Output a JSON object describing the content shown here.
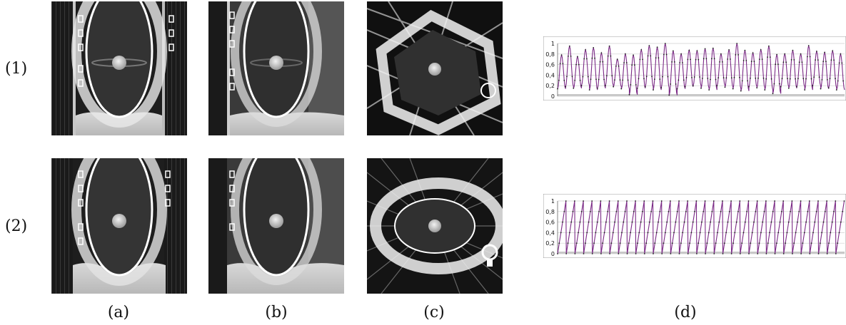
{
  "rows": [
    {
      "label": "(1)"
    },
    {
      "label": "(2)"
    }
  ],
  "columns": [
    {
      "label": "(a)"
    },
    {
      "label": "(b)"
    },
    {
      "label": "(c)"
    },
    {
      "label": "(d)"
    }
  ],
  "chart_data": [
    {
      "type": "line",
      "panel": "(1)(d)",
      "title": "",
      "xlabel": "",
      "ylabel": "",
      "ylim": [
        0,
        1
      ],
      "yticks": [
        "0",
        "0,2",
        "0,4",
        "0,6",
        "0,8",
        "1"
      ],
      "grid": true,
      "series_color": "#7b2a86",
      "series": [
        {
          "peaks": [
            0.78,
            0.95,
            0.75,
            0.88,
            0.92,
            0.82,
            0.95,
            0.7,
            0.8,
            0.78,
            0.88,
            0.96,
            0.93,
            1.0,
            0.86,
            0.8,
            0.87,
            0.86,
            0.9,
            0.91,
            0.8,
            0.88,
            1.0,
            0.87,
            0.82,
            0.88,
            0.95,
            0.79,
            0.8,
            0.87,
            0.8,
            0.96,
            0.85,
            0.83,
            0.86,
            0.8
          ],
          "troughs": [
            0.14,
            0.18,
            0.15,
            0.2,
            0.12,
            0.15,
            0.2,
            0.18,
            0.14,
            0.03,
            0.15,
            0.18,
            0.12,
            0.16,
            0.02,
            0.14,
            0.18,
            0.2,
            0.15,
            0.12,
            0.2,
            0.17,
            0.14,
            0.1,
            0.18,
            0.16,
            0.12,
            0.05,
            0.18,
            0.15,
            0.18,
            0.12,
            0.2,
            0.14,
            0.16,
            0.12
          ]
        }
      ]
    },
    {
      "type": "line",
      "panel": "(2)(d)",
      "title": "",
      "xlabel": "",
      "ylabel": "",
      "ylim": [
        0,
        1
      ],
      "yticks": [
        "0",
        "0,2",
        "0,4",
        "0,6",
        "0,8",
        "1"
      ],
      "grid": true,
      "series_color": "#7b2a86",
      "series": [
        {
          "shape": "sawtooth",
          "cycles": 33,
          "min": 0.0,
          "max": 1.0
        }
      ]
    }
  ]
}
